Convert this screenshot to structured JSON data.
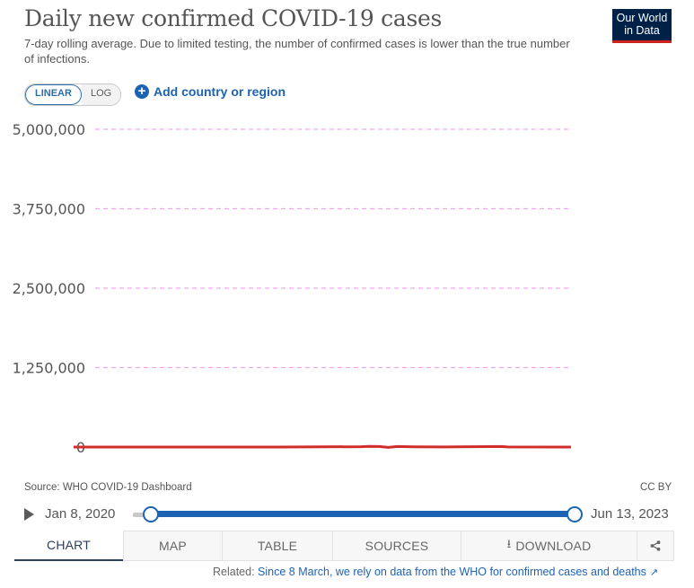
{
  "header": {
    "title": "Daily new confirmed COVID-19 cases",
    "subtitle": "7-day rolling average. Due to limited testing, the number of confirmed cases is lower than the true number of infections.",
    "logo_line1": "Our World",
    "logo_line2": "in Data"
  },
  "controls": {
    "scale_linear": "LINEAR",
    "scale_log": "LOG",
    "active_scale": "LINEAR",
    "add_label": "Add country or region"
  },
  "chart_data": {
    "type": "line",
    "title": "Daily new confirmed COVID-19 cases",
    "xlabel": "",
    "ylabel": "",
    "ylim": [
      0,
      5000000
    ],
    "yticks": [
      0,
      1250000,
      2500000,
      3750000,
      5000000
    ],
    "ytick_labels": [
      "0",
      "1,250,000",
      "2,500,000",
      "3,750,000",
      "5,000,000"
    ],
    "xlim": [
      "2020-01-08",
      "2023-06-13"
    ],
    "grid": true,
    "series": [
      {
        "color": "#d22d2d",
        "x": [
          "2020-01-08",
          "2020-06-01",
          "2021-01-01",
          "2021-06-01",
          "2022-01-01",
          "2022-01-20",
          "2022-02-15",
          "2022-03-10",
          "2022-04-01",
          "2022-05-15",
          "2022-08-01",
          "2022-12-20",
          "2023-01-05",
          "2023-06-13"
        ],
        "values": [
          0,
          0,
          0,
          0,
          6000,
          12000,
          9000,
          -5000,
          8000,
          4000,
          2000,
          8000,
          1000,
          0
        ]
      }
    ]
  },
  "footer": {
    "source": "Source: WHO COVID-19 Dashboard",
    "license": "CC BY",
    "start_date": "Jan 8, 2020",
    "end_date": "Jun 13, 2023"
  },
  "tabs": {
    "chart": "CHART",
    "map": "MAP",
    "table": "TABLE",
    "sources": "SOURCES",
    "download": "DOWNLOAD"
  },
  "related": {
    "prefix": "Related:",
    "link": "Since 8 March, we rely on data from the WHO for confirmed cases and deaths"
  },
  "colors": {
    "accent": "#1d63b4",
    "line": "#d22d2d",
    "grid": "#f2a6f2",
    "logo_bg": "#002147",
    "logo_bar": "#ce261e"
  },
  "icons": {
    "add": "plus-circle-icon",
    "play": "play-icon",
    "download": "download-icon",
    "share": "share-icon",
    "external": "external-link-icon"
  }
}
